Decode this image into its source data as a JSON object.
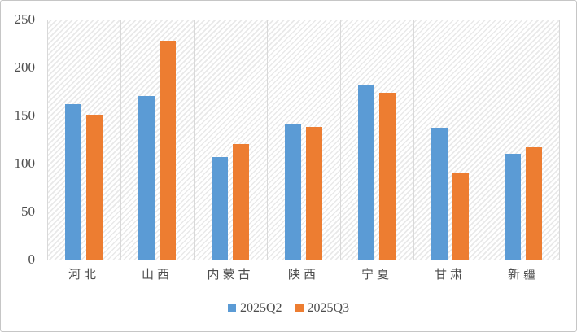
{
  "chart_data": {
    "type": "bar",
    "title": "",
    "xlabel": "",
    "ylabel": "",
    "categories": [
      "河北",
      "山西",
      "内蒙古",
      "陕西",
      "宁夏",
      "甘肃",
      "新疆"
    ],
    "series": [
      {
        "name": "2025Q2",
        "color": "#5B9BD5",
        "values": [
          162,
          170,
          107,
          141,
          181,
          137,
          110
        ]
      },
      {
        "name": "2025Q3",
        "color": "#ED7D31",
        "values": [
          151,
          228,
          120,
          138,
          174,
          90,
          117
        ]
      }
    ],
    "ylim": [
      0,
      250
    ],
    "y_ticks": [
      0,
      50,
      100,
      150,
      200,
      250
    ],
    "grid": true,
    "plot_background": "diagonal-hatch",
    "legend_position": "bottom"
  },
  "colors": {
    "gridline": "#d9d9d9",
    "axis_text": "#4d4d4d",
    "frame_border": "#c6c6c6",
    "background": "#ffffff",
    "series_blue": "#5B9BD5",
    "series_orange": "#ED7D31"
  }
}
